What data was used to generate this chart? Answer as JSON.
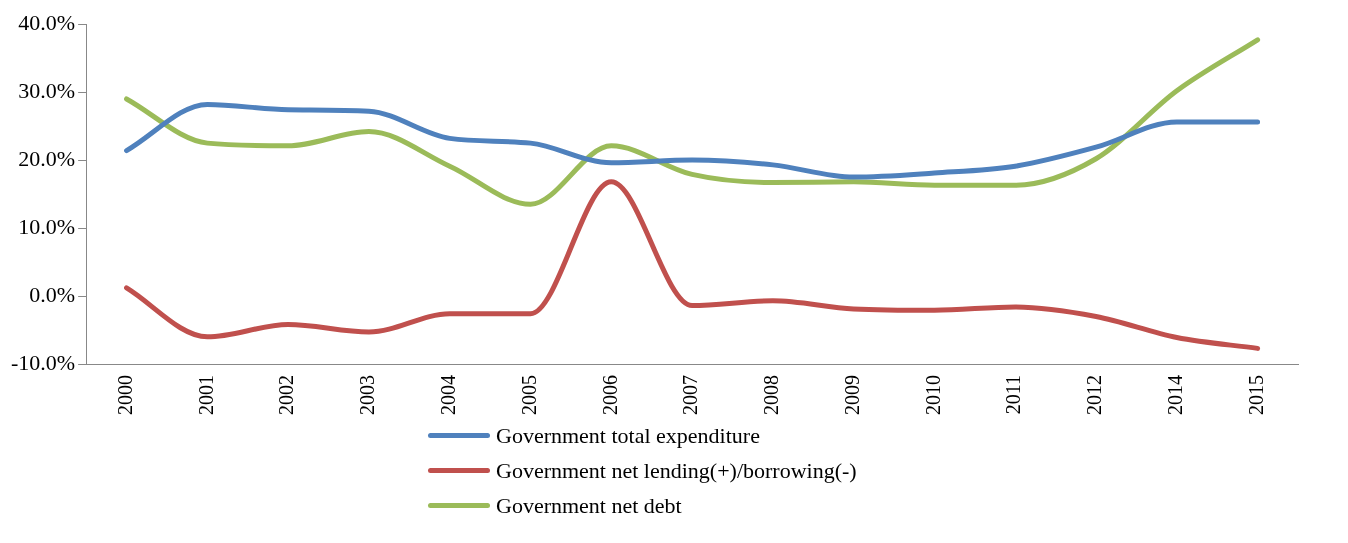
{
  "chart_data": {
    "type": "line",
    "categories": [
      "2000",
      "2001",
      "2002",
      "2003",
      "2004",
      "2005",
      "2006",
      "2007",
      "2008",
      "2009",
      "2010",
      "2011",
      "2012",
      "2014",
      "2015"
    ],
    "series": [
      {
        "name": "Government total expenditure",
        "color": "#4f81bd",
        "values": [
          21.4,
          28.2,
          27.4,
          27.2,
          23.2,
          22.5,
          19.6,
          20.0,
          19.3,
          17.5,
          18.1,
          19.1,
          21.9,
          25.6,
          25.6
        ]
      },
      {
        "name": "Government net lending(+)/borrowing(-)",
        "color": "#c0504d",
        "values": [
          1.2,
          -6.0,
          -4.2,
          -5.3,
          -2.6,
          -2.6,
          16.8,
          -1.4,
          -0.7,
          -1.9,
          -2.1,
          -1.6,
          -3.0,
          -6.1,
          -7.7
        ]
      },
      {
        "name": "Government net debt",
        "color": "#9bbb59",
        "values": [
          29.0,
          22.5,
          22.1,
          24.2,
          19.1,
          13.5,
          22.1,
          17.9,
          16.7,
          16.8,
          16.3,
          16.3,
          20.2,
          30.2,
          37.7
        ]
      }
    ],
    "ylim": [
      -10,
      40
    ],
    "yticks": [
      {
        "value": -10,
        "label": "-10.0%"
      },
      {
        "value": 0,
        "label": "0.0%"
      },
      {
        "value": 10,
        "label": "10.0%"
      },
      {
        "value": 20,
        "label": "20.0%"
      },
      {
        "value": 30,
        "label": "30.0%"
      },
      {
        "value": 40,
        "label": "40.0%"
      }
    ],
    "grid": false,
    "legend": "bottom",
    "marker": "none",
    "line_style": "solid"
  }
}
